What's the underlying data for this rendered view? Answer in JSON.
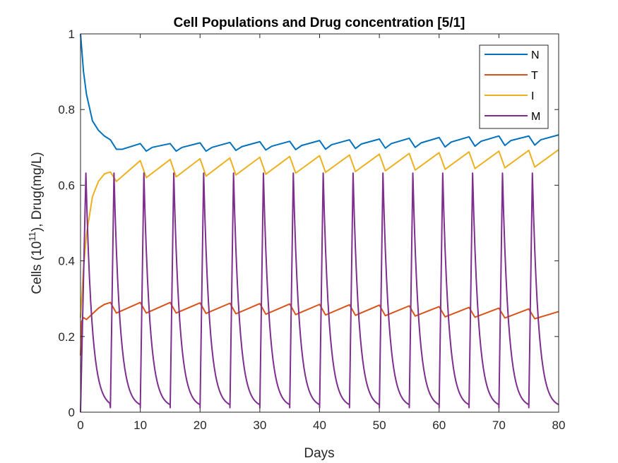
{
  "chart_data": {
    "type": "line",
    "title": "Cell Populations and Drug concentration [5/1]",
    "xlabel": "Days",
    "ylabel_prefix": "Cells (10",
    "ylabel_sup": "11",
    "ylabel_suffix": "), Drug(mg/L)",
    "xlim": [
      0,
      80
    ],
    "ylim": [
      0,
      1
    ],
    "xticks": [
      "0",
      "10",
      "20",
      "30",
      "40",
      "50",
      "60",
      "70",
      "80"
    ],
    "yticks": [
      "0",
      "0.2",
      "0.4",
      "0.6",
      "0.8",
      "1"
    ],
    "grid": false,
    "legend_position": "top-right",
    "series": [
      {
        "name": "N",
        "color": "#0072BD",
        "x": [
          0,
          0.5,
          1,
          2,
          3,
          4,
          5,
          6,
          7,
          10,
          11,
          12,
          15,
          16,
          17,
          20,
          21,
          22,
          25,
          26,
          27,
          30,
          31,
          32,
          35,
          36,
          37,
          40,
          41,
          42,
          45,
          46,
          47,
          50,
          51,
          52,
          55,
          56,
          57,
          60,
          61,
          62,
          65,
          66,
          67,
          70,
          71,
          72,
          75,
          76,
          77,
          80
        ],
        "y": [
          1.0,
          0.9,
          0.84,
          0.77,
          0.745,
          0.73,
          0.72,
          0.695,
          0.695,
          0.71,
          0.69,
          0.7,
          0.71,
          0.69,
          0.7,
          0.712,
          0.69,
          0.7,
          0.713,
          0.692,
          0.702,
          0.715,
          0.693,
          0.703,
          0.716,
          0.694,
          0.705,
          0.718,
          0.695,
          0.707,
          0.72,
          0.697,
          0.709,
          0.722,
          0.698,
          0.71,
          0.724,
          0.7,
          0.712,
          0.726,
          0.701,
          0.714,
          0.728,
          0.703,
          0.716,
          0.73,
          0.705,
          0.718,
          0.73,
          0.706,
          0.72,
          0.733
        ]
      },
      {
        "name": "T",
        "color": "#D95319",
        "x": [
          0,
          0.2,
          0.5,
          1,
          2,
          3,
          4,
          5,
          6,
          10,
          11,
          15,
          16,
          20,
          21,
          25,
          26,
          30,
          31,
          35,
          36,
          40,
          41,
          45,
          46,
          50,
          51,
          55,
          56,
          60,
          61,
          65,
          66,
          70,
          71,
          75,
          76,
          80
        ],
        "y": [
          0.15,
          0.24,
          0.25,
          0.245,
          0.26,
          0.275,
          0.285,
          0.29,
          0.262,
          0.29,
          0.262,
          0.29,
          0.262,
          0.289,
          0.261,
          0.288,
          0.26,
          0.287,
          0.259,
          0.286,
          0.258,
          0.285,
          0.257,
          0.284,
          0.256,
          0.283,
          0.255,
          0.281,
          0.254,
          0.279,
          0.252,
          0.277,
          0.251,
          0.275,
          0.249,
          0.273,
          0.247,
          0.266
        ]
      },
      {
        "name": "I",
        "color": "#EDB120",
        "x": [
          0,
          0.5,
          1,
          2,
          3,
          4,
          5,
          6,
          10,
          11,
          15,
          16,
          20,
          21,
          25,
          26,
          30,
          31,
          35,
          36,
          40,
          41,
          45,
          46,
          50,
          51,
          55,
          56,
          60,
          61,
          65,
          66,
          70,
          71,
          75,
          76,
          80
        ],
        "y": [
          0.25,
          0.38,
          0.47,
          0.57,
          0.61,
          0.63,
          0.635,
          0.61,
          0.665,
          0.62,
          0.668,
          0.622,
          0.67,
          0.624,
          0.672,
          0.627,
          0.674,
          0.629,
          0.676,
          0.632,
          0.678,
          0.634,
          0.68,
          0.636,
          0.682,
          0.638,
          0.684,
          0.64,
          0.686,
          0.642,
          0.688,
          0.644,
          0.69,
          0.646,
          0.692,
          0.648,
          0.694
        ]
      },
      {
        "name": "M",
        "color": "#7E2F8E",
        "dose_interval": 5,
        "peak": 0.632,
        "trough": 0.012,
        "x_end": 80
      }
    ]
  }
}
